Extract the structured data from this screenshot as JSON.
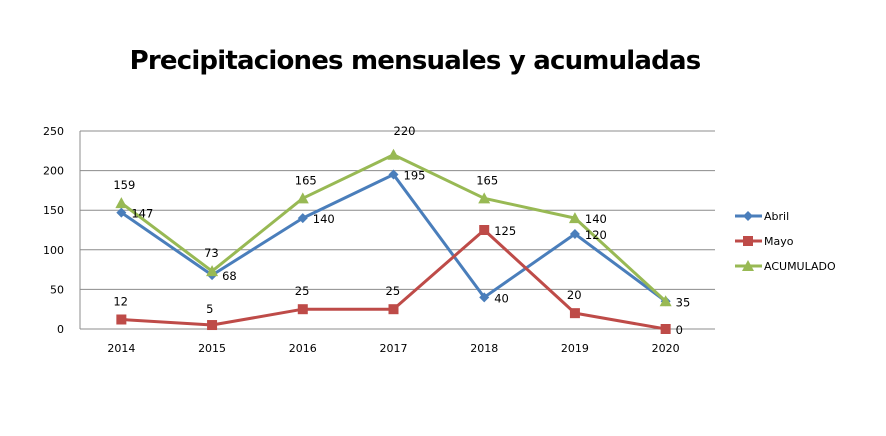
{
  "chart_data": {
    "type": "line",
    "title": "Precipitaciones mensuales y acumuladas",
    "xlabel": "",
    "ylabel": "",
    "categories": [
      "2014",
      "2015",
      "2016",
      "2017",
      "2018",
      "2019",
      "2020"
    ],
    "ylim": [
      0,
      250
    ],
    "yticks": [
      0,
      50,
      100,
      150,
      200,
      250
    ],
    "grid": true,
    "legend_position": "right",
    "series": [
      {
        "name": "Abril",
        "color": "#4a7ebb",
        "marker": "diamond",
        "values": [
          147,
          68,
          140,
          195,
          40,
          120,
          35
        ]
      },
      {
        "name": "Mayo",
        "color": "#be4b48",
        "marker": "square",
        "values": [
          12,
          5,
          25,
          25,
          125,
          20,
          0
        ]
      },
      {
        "name": "ACUMULADO",
        "color": "#98b954",
        "marker": "triangle",
        "values": [
          159,
          73,
          165,
          220,
          165,
          140,
          35
        ]
      }
    ]
  }
}
